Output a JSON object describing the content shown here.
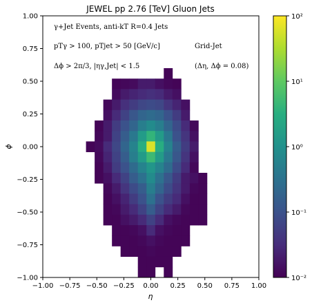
{
  "chart_data": {
    "type": "heatmap",
    "title": "JEWEL pp 2.76 [TeV] Gluon Jets",
    "xlabel": "η",
    "ylabel": "ϕ",
    "xlim": [
      -1.0,
      1.0
    ],
    "ylim": [
      -1.0,
      1.0
    ],
    "x_ticks": [
      "−1.00",
      "−0.75",
      "−0.50",
      "−0.25",
      "0.00",
      "0.25",
      "0.50",
      "0.75",
      "1.00"
    ],
    "y_ticks": [
      "−1.00",
      "−0.75",
      "−0.50",
      "−0.25",
      "0.00",
      "0.25",
      "0.50",
      "0.75",
      "1.00"
    ],
    "x_tick_values": [
      -1.0,
      -0.75,
      -0.5,
      -0.25,
      0.0,
      0.25,
      0.5,
      0.75,
      1.0
    ],
    "y_tick_values": [
      -1.0,
      -0.75,
      -0.5,
      -0.25,
      0.0,
      0.25,
      0.5,
      0.75,
      1.0
    ],
    "bin_size": 0.08,
    "colorbar": {
      "scale": "log",
      "range": [
        0.01,
        100
      ],
      "ticks": [
        0.01,
        0.1,
        1,
        10,
        100
      ],
      "tick_labels": [
        "10⁻²",
        "10⁻¹",
        "10⁰",
        "10¹",
        "10²"
      ],
      "colormap": "viridis"
    },
    "annotations": {
      "line1": "γ+Jet Events, anti-kT R=0.4 Jets",
      "line2": "pTγ > 100, pTjet > 50 [GeV/c]",
      "line3": "Δϕ > 2π/3, |ηγ,Jet| < 1.5",
      "grid_label": "Grid-Jet",
      "grid_size": "(Δη, Δϕ = 0.08)"
    },
    "rows": [
      {
        "phi": 0.56,
        "cells": [
          [
            0.16,
            0.011
          ]
        ]
      },
      {
        "phi": 0.48,
        "cells": [
          [
            -0.32,
            0.011
          ],
          [
            -0.24,
            0.012
          ],
          [
            -0.16,
            0.013
          ],
          [
            -0.08,
            0.02
          ],
          [
            0.0,
            0.02
          ],
          [
            0.08,
            0.015
          ],
          [
            0.16,
            0.012
          ],
          [
            0.24,
            0.011
          ]
        ]
      },
      {
        "phi": 0.4,
        "cells": [
          [
            -0.32,
            0.013
          ],
          [
            -0.24,
            0.02
          ],
          [
            -0.16,
            0.025
          ],
          [
            -0.08,
            0.03
          ],
          [
            0.0,
            0.035
          ],
          [
            0.08,
            0.03
          ],
          [
            0.16,
            0.02
          ],
          [
            0.24,
            0.015
          ]
        ]
      },
      {
        "phi": 0.32,
        "cells": [
          [
            -0.4,
            0.012
          ],
          [
            -0.32,
            0.02
          ],
          [
            -0.24,
            0.035
          ],
          [
            -0.16,
            0.05
          ],
          [
            -0.08,
            0.07
          ],
          [
            0.0,
            0.08
          ],
          [
            0.08,
            0.07
          ],
          [
            0.16,
            0.04
          ],
          [
            0.24,
            0.025
          ],
          [
            0.32,
            0.015
          ]
        ]
      },
      {
        "phi": 0.24,
        "cells": [
          [
            -0.4,
            0.015
          ],
          [
            -0.32,
            0.03
          ],
          [
            -0.24,
            0.06
          ],
          [
            -0.16,
            0.12
          ],
          [
            -0.08,
            0.2
          ],
          [
            0.0,
            0.25
          ],
          [
            0.08,
            0.2
          ],
          [
            0.16,
            0.1
          ],
          [
            0.24,
            0.05
          ],
          [
            0.32,
            0.02
          ]
        ]
      },
      {
        "phi": 0.16,
        "cells": [
          [
            -0.48,
            0.011
          ],
          [
            -0.4,
            0.02
          ],
          [
            -0.32,
            0.05
          ],
          [
            -0.24,
            0.1
          ],
          [
            -0.16,
            0.2
          ],
          [
            -0.08,
            0.5
          ],
          [
            0.0,
            0.8
          ],
          [
            0.08,
            0.5
          ],
          [
            0.16,
            0.2
          ],
          [
            0.24,
            0.08
          ],
          [
            0.32,
            0.03
          ],
          [
            0.4,
            0.012
          ]
        ]
      },
      {
        "phi": 0.08,
        "cells": [
          [
            -0.48,
            0.012
          ],
          [
            -0.4,
            0.02
          ],
          [
            -0.32,
            0.06
          ],
          [
            -0.24,
            0.15
          ],
          [
            -0.16,
            0.4
          ],
          [
            -0.08,
            1.5
          ],
          [
            0.0,
            4.0
          ],
          [
            0.08,
            1.5
          ],
          [
            0.16,
            0.4
          ],
          [
            0.24,
            0.1
          ],
          [
            0.32,
            0.04
          ],
          [
            0.4,
            0.015
          ]
        ]
      },
      {
        "phi": 0.0,
        "cells": [
          [
            -0.56,
            0.011
          ],
          [
            -0.48,
            0.013
          ],
          [
            -0.4,
            0.03
          ],
          [
            -0.32,
            0.07
          ],
          [
            -0.24,
            0.2
          ],
          [
            -0.16,
            0.6
          ],
          [
            -0.08,
            3.0
          ],
          [
            0.0,
            60.0
          ],
          [
            0.08,
            3.0
          ],
          [
            0.16,
            0.6
          ],
          [
            0.24,
            0.15
          ],
          [
            0.32,
            0.05
          ],
          [
            0.4,
            0.02
          ]
        ]
      },
      {
        "phi": -0.08,
        "cells": [
          [
            -0.48,
            0.012
          ],
          [
            -0.4,
            0.025
          ],
          [
            -0.32,
            0.06
          ],
          [
            -0.24,
            0.15
          ],
          [
            -0.16,
            0.5
          ],
          [
            -0.08,
            1.5
          ],
          [
            0.0,
            5.0
          ],
          [
            0.08,
            1.5
          ],
          [
            0.16,
            0.4
          ],
          [
            0.24,
            0.12
          ],
          [
            0.32,
            0.04
          ],
          [
            0.4,
            0.015
          ]
        ]
      },
      {
        "phi": -0.16,
        "cells": [
          [
            -0.48,
            0.011
          ],
          [
            -0.4,
            0.02
          ],
          [
            -0.32,
            0.05
          ],
          [
            -0.24,
            0.1
          ],
          [
            -0.16,
            0.25
          ],
          [
            -0.08,
            0.6
          ],
          [
            0.0,
            1.2
          ],
          [
            0.08,
            0.6
          ],
          [
            0.16,
            0.25
          ],
          [
            0.24,
            0.08
          ],
          [
            0.32,
            0.03
          ],
          [
            0.4,
            0.012
          ]
        ]
      },
      {
        "phi": -0.24,
        "cells": [
          [
            -0.48,
            0.011
          ],
          [
            -0.4,
            0.015
          ],
          [
            -0.32,
            0.03
          ],
          [
            -0.24,
            0.06
          ],
          [
            -0.16,
            0.15
          ],
          [
            -0.08,
            0.3
          ],
          [
            0.0,
            0.8
          ],
          [
            0.08,
            0.3
          ],
          [
            0.16,
            0.12
          ],
          [
            0.24,
            0.05
          ],
          [
            0.32,
            0.02
          ],
          [
            0.4,
            0.015
          ],
          [
            0.48,
            0.011
          ]
        ]
      },
      {
        "phi": -0.32,
        "cells": [
          [
            -0.4,
            0.012
          ],
          [
            -0.32,
            0.02
          ],
          [
            -0.24,
            0.04
          ],
          [
            -0.16,
            0.08
          ],
          [
            -0.08,
            0.15
          ],
          [
            0.0,
            0.5
          ],
          [
            0.08,
            0.2
          ],
          [
            0.16,
            0.08
          ],
          [
            0.24,
            0.04
          ],
          [
            0.32,
            0.02
          ],
          [
            0.4,
            0.012
          ],
          [
            0.48,
            0.011
          ]
        ]
      },
      {
        "phi": -0.4,
        "cells": [
          [
            -0.4,
            0.011
          ],
          [
            -0.32,
            0.015
          ],
          [
            -0.24,
            0.025
          ],
          [
            -0.16,
            0.05
          ],
          [
            -0.08,
            0.1
          ],
          [
            0.0,
            0.3
          ],
          [
            0.08,
            0.1
          ],
          [
            0.16,
            0.05
          ],
          [
            0.24,
            0.03
          ],
          [
            0.32,
            0.015
          ],
          [
            0.4,
            0.011
          ],
          [
            0.48,
            0.011
          ]
        ]
      },
      {
        "phi": -0.48,
        "cells": [
          [
            -0.4,
            0.011
          ],
          [
            -0.32,
            0.012
          ],
          [
            -0.24,
            0.02
          ],
          [
            -0.16,
            0.03
          ],
          [
            -0.08,
            0.06
          ],
          [
            0.0,
            0.15
          ],
          [
            0.08,
            0.06
          ],
          [
            0.16,
            0.03
          ],
          [
            0.24,
            0.02
          ],
          [
            0.32,
            0.012
          ],
          [
            0.4,
            0.011
          ],
          [
            0.48,
            0.011
          ]
        ]
      },
      {
        "phi": -0.56,
        "cells": [
          [
            -0.4,
            0.011
          ],
          [
            -0.32,
            0.011
          ],
          [
            -0.24,
            0.015
          ],
          [
            -0.16,
            0.02
          ],
          [
            -0.08,
            0.03
          ],
          [
            0.0,
            0.06
          ],
          [
            0.08,
            0.03
          ],
          [
            0.16,
            0.015
          ],
          [
            0.24,
            0.012
          ],
          [
            0.32,
            0.011
          ],
          [
            0.4,
            0.011
          ],
          [
            0.48,
            0.011
          ]
        ]
      },
      {
        "phi": -0.64,
        "cells": [
          [
            -0.32,
            0.011
          ],
          [
            -0.24,
            0.011
          ],
          [
            -0.16,
            0.012
          ],
          [
            -0.08,
            0.015
          ],
          [
            0.0,
            0.03
          ],
          [
            0.08,
            0.015
          ],
          [
            0.16,
            0.012
          ],
          [
            0.24,
            0.011
          ],
          [
            0.32,
            0.011
          ]
        ]
      },
      {
        "phi": -0.72,
        "cells": [
          [
            -0.32,
            0.011
          ],
          [
            -0.24,
            0.011
          ],
          [
            -0.16,
            0.011
          ],
          [
            -0.08,
            0.012
          ],
          [
            0.0,
            0.015
          ],
          [
            0.08,
            0.012
          ],
          [
            0.16,
            0.011
          ],
          [
            0.24,
            0.011
          ],
          [
            0.32,
            0.011
          ]
        ]
      },
      {
        "phi": -0.8,
        "cells": [
          [
            -0.24,
            0.011
          ],
          [
            -0.16,
            0.011
          ],
          [
            -0.08,
            0.011
          ],
          [
            0.0,
            0.012
          ],
          [
            0.08,
            0.011
          ],
          [
            0.16,
            0.011
          ],
          [
            0.24,
            0.011
          ]
        ]
      },
      {
        "phi": -0.88,
        "cells": [
          [
            -0.08,
            0.011
          ],
          [
            0.0,
            0.011
          ],
          [
            0.08,
            0.011
          ],
          [
            0.16,
            0.011
          ]
        ]
      },
      {
        "phi": -0.96,
        "cells": [
          [
            -0.08,
            0.011
          ],
          [
            0.0,
            0.011
          ],
          [
            0.16,
            0.011
          ]
        ]
      }
    ]
  }
}
